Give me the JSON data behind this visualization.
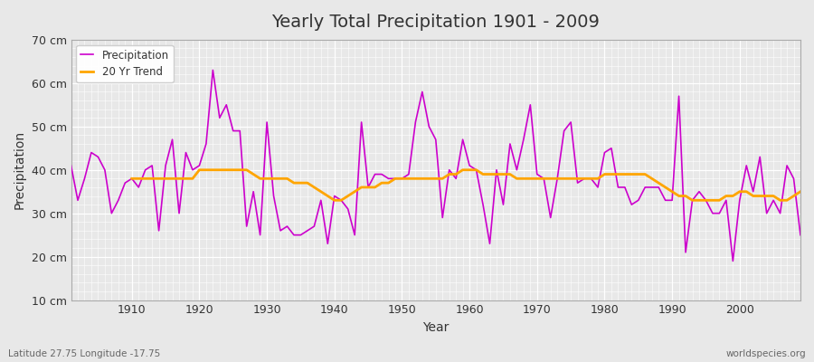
{
  "title": "Yearly Total Precipitation 1901 - 2009",
  "xlabel": "Year",
  "ylabel": "Precipitation",
  "subtitle": "Latitude 27.75 Longitude -17.75",
  "watermark": "worldspecies.org",
  "background_color": "#e8e8e8",
  "plot_bg_color": "#e8e8e8",
  "precip_color": "#cc00cc",
  "trend_color": "#ffa500",
  "years": [
    1901,
    1902,
    1903,
    1904,
    1905,
    1906,
    1907,
    1908,
    1909,
    1910,
    1911,
    1912,
    1913,
    1914,
    1915,
    1916,
    1917,
    1918,
    1919,
    1920,
    1921,
    1922,
    1923,
    1924,
    1925,
    1926,
    1927,
    1928,
    1929,
    1930,
    1931,
    1932,
    1933,
    1934,
    1935,
    1936,
    1937,
    1938,
    1939,
    1940,
    1941,
    1942,
    1943,
    1944,
    1945,
    1946,
    1947,
    1948,
    1949,
    1950,
    1951,
    1952,
    1953,
    1954,
    1955,
    1956,
    1957,
    1958,
    1959,
    1960,
    1961,
    1962,
    1963,
    1964,
    1965,
    1966,
    1967,
    1968,
    1969,
    1970,
    1971,
    1972,
    1973,
    1974,
    1975,
    1976,
    1977,
    1978,
    1979,
    1980,
    1981,
    1982,
    1983,
    1984,
    1985,
    1986,
    1987,
    1988,
    1989,
    1990,
    1991,
    1992,
    1993,
    1994,
    1995,
    1996,
    1997,
    1998,
    1999,
    2000,
    2001,
    2002,
    2003,
    2004,
    2005,
    2006,
    2007,
    2008,
    2009
  ],
  "precipitation": [
    41,
    33,
    38,
    44,
    43,
    40,
    30,
    33,
    37,
    38,
    36,
    40,
    41,
    26,
    41,
    47,
    30,
    44,
    40,
    41,
    46,
    63,
    52,
    55,
    49,
    49,
    27,
    35,
    25,
    51,
    34,
    26,
    27,
    25,
    25,
    26,
    27,
    33,
    23,
    34,
    33,
    31,
    25,
    51,
    36,
    39,
    39,
    38,
    38,
    38,
    39,
    51,
    58,
    50,
    47,
    29,
    40,
    38,
    47,
    41,
    40,
    32,
    23,
    40,
    32,
    46,
    40,
    47,
    55,
    39,
    38,
    29,
    38,
    49,
    51,
    37,
    38,
    38,
    36,
    44,
    45,
    36,
    36,
    32,
    33,
    36,
    36,
    36,
    33,
    33,
    57,
    21,
    33,
    35,
    33,
    30,
    30,
    33,
    19,
    33,
    41,
    35,
    43,
    30,
    33,
    30,
    41,
    38,
    25
  ],
  "trend_years": [
    1910,
    1911,
    1912,
    1913,
    1914,
    1915,
    1916,
    1917,
    1918,
    1919,
    1920,
    1921,
    1922,
    1923,
    1924,
    1925,
    1926,
    1927,
    1928,
    1929,
    1930,
    1931,
    1932,
    1933,
    1934,
    1935,
    1936,
    1937,
    1938,
    1939,
    1940,
    1941,
    1942,
    1943,
    1944,
    1945,
    1946,
    1947,
    1948,
    1949,
    1950,
    1951,
    1952,
    1953,
    1954,
    1955,
    1956,
    1957,
    1958,
    1959,
    1960,
    1961,
    1962,
    1963,
    1964,
    1965,
    1966,
    1967,
    1968,
    1969,
    1970,
    1971,
    1972,
    1973,
    1974,
    1975,
    1976,
    1977,
    1978,
    1979,
    1980,
    1981,
    1982,
    1983,
    1984,
    1985,
    1986,
    1987,
    1988,
    1989,
    1990,
    1991,
    1992,
    1993,
    1994,
    1995,
    1996,
    1997,
    1998,
    1999,
    2000,
    2001,
    2002,
    2003,
    2004,
    2005,
    2006,
    2007,
    2008,
    2009
  ],
  "trend": [
    38,
    38,
    38,
    38,
    38,
    38,
    38,
    38,
    38,
    38,
    40,
    40,
    40,
    40,
    40,
    40,
    40,
    40,
    39,
    38,
    38,
    38,
    38,
    38,
    37,
    37,
    37,
    36,
    35,
    34,
    33,
    33,
    34,
    35,
    36,
    36,
    36,
    37,
    37,
    38,
    38,
    38,
    38,
    38,
    38,
    38,
    38,
    39,
    39,
    40,
    40,
    40,
    39,
    39,
    39,
    39,
    39,
    38,
    38,
    38,
    38,
    38,
    38,
    38,
    38,
    38,
    38,
    38,
    38,
    38,
    39,
    39,
    39,
    39,
    39,
    39,
    39,
    38,
    37,
    36,
    35,
    34,
    34,
    33,
    33,
    33,
    33,
    33,
    34,
    34,
    35,
    35,
    34,
    34,
    34,
    34,
    33,
    33,
    34,
    35
  ],
  "ylim": [
    10,
    70
  ],
  "yticks": [
    10,
    20,
    30,
    40,
    50,
    60,
    70
  ],
  "ytick_labels": [
    "10 cm",
    "20 cm",
    "30 cm",
    "40 cm",
    "50 cm",
    "60 cm",
    "70 cm"
  ],
  "xlim": [
    1901,
    2009
  ],
  "xticks": [
    1910,
    1920,
    1930,
    1940,
    1950,
    1960,
    1970,
    1980,
    1990,
    2000
  ],
  "legend_entries": [
    "Precipitation",
    "20 Yr Trend"
  ],
  "linewidth_precip": 1.2,
  "linewidth_trend": 2.0
}
